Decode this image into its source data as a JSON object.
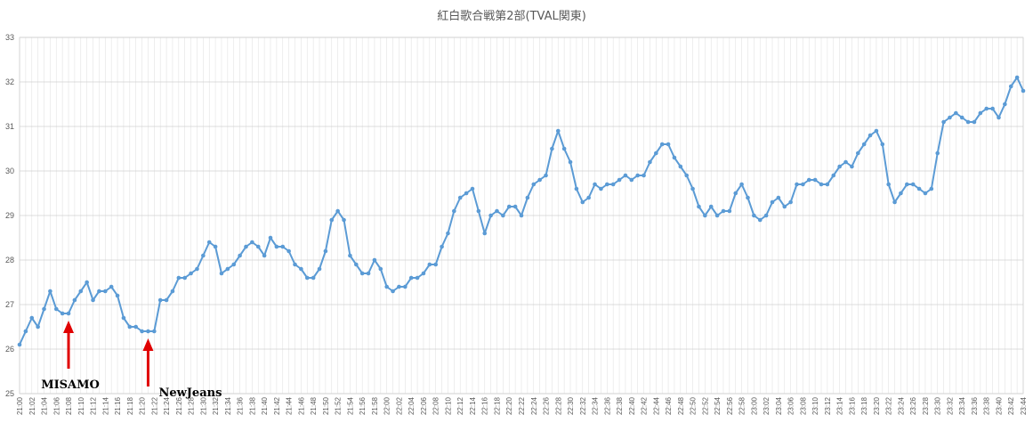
{
  "chart_data": {
    "type": "line",
    "title": "紅白歌合戦第2部(TVAL関東)",
    "xlabel": "",
    "ylabel": "",
    "ylim": [
      25,
      33
    ],
    "yticks": [
      25,
      26,
      27,
      28,
      29,
      30,
      31,
      32,
      33
    ],
    "grid": true,
    "legend": "none",
    "line_color": "#5b9bd5",
    "x_start": "21:00",
    "x_end": "23:44",
    "x_step_minutes": 1,
    "x_label_every_minutes": 2,
    "series": [
      {
        "values": [
          26.1,
          26.4,
          26.7,
          26.5,
          26.9,
          27.3,
          26.9,
          26.8,
          26.8,
          27.1,
          27.3,
          27.5,
          27.1,
          27.3,
          27.3,
          27.4,
          27.2,
          26.7,
          26.5,
          26.5,
          26.4,
          26.4,
          26.4,
          27.1,
          27.1,
          27.3,
          27.6,
          27.6,
          27.7,
          27.8,
          28.1,
          28.4,
          28.3,
          27.7,
          27.8,
          27.9,
          28.1,
          28.3,
          28.4,
          28.3,
          28.1,
          28.5,
          28.3,
          28.3,
          28.2,
          27.9,
          27.8,
          27.6,
          27.6,
          27.8,
          28.2,
          28.9,
          29.1,
          28.9,
          28.1,
          27.9,
          27.7,
          27.7,
          28.0,
          27.8,
          27.4,
          27.3,
          27.4,
          27.4,
          27.6,
          27.6,
          27.7,
          27.9,
          27.9,
          28.3,
          28.6,
          29.1,
          29.4,
          29.5,
          29.6,
          29.1,
          28.6,
          29.0,
          29.1,
          29.0,
          29.2,
          29.2,
          29.0,
          29.4,
          29.7,
          29.8,
          29.9,
          30.5,
          30.9,
          30.5,
          30.2,
          29.6,
          29.3,
          29.4,
          29.7,
          29.6,
          29.7,
          29.7,
          29.8,
          29.9,
          29.8,
          29.9,
          29.9,
          30.2,
          30.4,
          30.6,
          30.6,
          30.3,
          30.1,
          29.9,
          29.6,
          29.2,
          29.0,
          29.2,
          29.0,
          29.1,
          29.1,
          29.5,
          29.7,
          29.4,
          29.0,
          28.9,
          29.0,
          29.3,
          29.4,
          29.2,
          29.3,
          29.7,
          29.7,
          29.8,
          29.8,
          29.7,
          29.7,
          29.9,
          30.1,
          30.2,
          30.1,
          30.4,
          30.6,
          30.8,
          30.9,
          30.6,
          29.7,
          29.3,
          29.5,
          29.7,
          29.7,
          29.6,
          29.5,
          29.6,
          30.4,
          31.1,
          31.2,
          31.3,
          31.2,
          31.1,
          31.1,
          31.3,
          31.4,
          31.4,
          31.2,
          31.5,
          31.9,
          32.1,
          31.8
        ]
      }
    ],
    "annotations": [
      {
        "label": "MISAMO",
        "time": "21:08",
        "value": 26.8,
        "arrow_color": "#e00000"
      },
      {
        "label": "NewJeans",
        "time": "21:21",
        "value": 26.4,
        "arrow_color": "#e00000"
      }
    ]
  }
}
